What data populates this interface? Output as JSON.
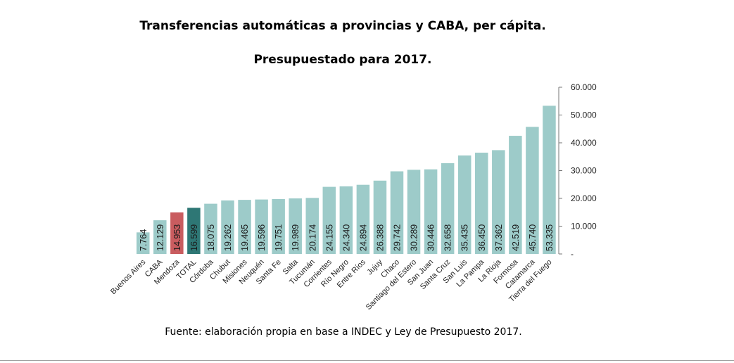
{
  "chart_data": {
    "type": "bar",
    "title": "Transferencias automáticas a provincias y CABA, per cápita.",
    "subtitle": "Presupuestado para 2017.",
    "source": "Fuente: elaboración propia en base a INDEC y Ley de Presupuesto 2017.",
    "categories": [
      "Buenos Aires",
      "CABA",
      "Mendoza",
      "TOTAL",
      "Córdoba",
      "Chubut",
      "Misiones",
      "Neuquén",
      "Santa Fe",
      "Salta",
      "Tucumán",
      "Corrientes",
      "Río Negro",
      "Entre Ríos",
      "Jujuy",
      "Chaco",
      "Santiago del Estero",
      "San Juan",
      "Santa Cruz",
      "San Luis",
      "La Pampa",
      "La Rioja",
      "Formosa",
      "Catamarca",
      "Tierra del Fuego"
    ],
    "values": [
      7764,
      12129,
      14953,
      16599,
      18075,
      19262,
      19465,
      19596,
      19751,
      19989,
      20174,
      24155,
      24340,
      24894,
      26388,
      29742,
      30289,
      30446,
      32658,
      35435,
      36450,
      37362,
      42519,
      45740,
      53335
    ],
    "value_labels": [
      "7.764",
      "12.129",
      "14.953",
      "16.599",
      "18.075",
      "19.262",
      "19.465",
      "19.596",
      "19.751",
      "19.989",
      "20.174",
      "24.155",
      "24.340",
      "24.894",
      "26.388",
      "29.742",
      "30.289",
      "30.446",
      "32.658",
      "35.435",
      "36.450",
      "37.362",
      "42.519",
      "45.740",
      "53.335"
    ],
    "ylim": [
      0,
      60000
    ],
    "yticks": [
      0,
      10000,
      20000,
      30000,
      40000,
      50000,
      60000
    ],
    "ytick_labels": [
      "-",
      "10.000",
      "20.000",
      "30.000",
      "40.000",
      "50.000",
      "60.000"
    ],
    "y_axis_side": "right",
    "grid": false,
    "xlabel": "",
    "ylabel": "",
    "colors": {
      "default": "#9dcbc9",
      "Mendoza": "#c95c5f",
      "TOTAL": "#2e7775"
    }
  }
}
